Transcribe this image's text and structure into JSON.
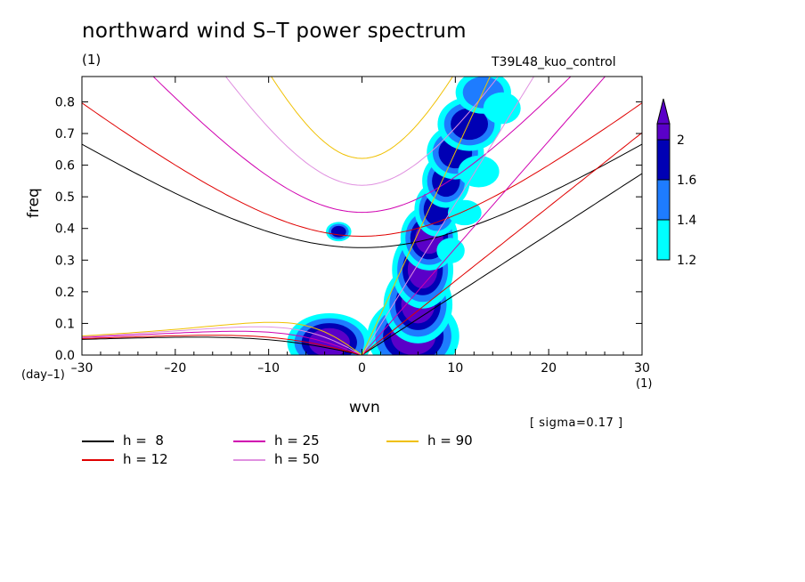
{
  "chart_data": {
    "type": "heatmap",
    "title": "northward wind S–T power spectrum",
    "subtitle_left": "(1)",
    "subtitle_right": "T39L48_kuo_control",
    "xlabel": "wvn",
    "xlabel_unit": "(1)",
    "ylabel": "freq",
    "ylabel_unit": "(day–1)",
    "xlim": [
      -30,
      30
    ],
    "ylim": [
      0,
      0.88
    ],
    "xticks": [
      -30,
      -20,
      -10,
      0,
      10,
      20,
      30
    ],
    "xtick_labels": [
      "–30",
      "–20",
      "–10",
      "0",
      "10",
      "20",
      "30"
    ],
    "yticks": [
      0,
      0.1,
      0.2,
      0.3,
      0.4,
      0.5,
      0.6,
      0.7,
      0.8
    ],
    "ytick_labels": [
      "0.0",
      "0.1",
      "0.2",
      "0.3",
      "0.4",
      "0.5",
      "0.6",
      "0.7",
      "0.8"
    ],
    "colorbar": {
      "levels": [
        1.2,
        1.4,
        1.6,
        2
      ],
      "labels": [
        "1.2",
        "1.4",
        "1.6",
        "2"
      ],
      "colors": [
        "#00ffff",
        "#1e7cff",
        "#0000b4",
        "#5a00c8"
      ]
    },
    "sigma_note": "[ sigma=0.17 ]",
    "dispersion_curves": [
      {
        "h": 8,
        "label": "h =  8",
        "color": "#000000"
      },
      {
        "h": 12,
        "label": "h = 12",
        "color": "#e00000"
      },
      {
        "h": 25,
        "label": "h = 25",
        "color": "#d000b0"
      },
      {
        "h": 50,
        "label": "h = 50",
        "color": "#e090e0"
      },
      {
        "h": 90,
        "label": "h = 90",
        "color": "#f0c000"
      }
    ],
    "spectral_blobs": [
      {
        "x": 5.5,
        "y": 0.06,
        "rx": 2.4,
        "ry": 0.06,
        "level": 3
      },
      {
        "x": 6.0,
        "y": 0.16,
        "rx": 1.8,
        "ry": 0.06,
        "level": 3
      },
      {
        "x": 6.5,
        "y": 0.27,
        "rx": 1.6,
        "ry": 0.06,
        "level": 3
      },
      {
        "x": 7.2,
        "y": 0.37,
        "rx": 1.5,
        "ry": 0.05,
        "level": 3
      },
      {
        "x": 8.0,
        "y": 0.46,
        "rx": 1.4,
        "ry": 0.05,
        "level": 2
      },
      {
        "x": 9.0,
        "y": 0.55,
        "rx": 1.5,
        "ry": 0.05,
        "level": 2
      },
      {
        "x": 10.0,
        "y": 0.64,
        "rx": 1.8,
        "ry": 0.05,
        "level": 2
      },
      {
        "x": 11.5,
        "y": 0.73,
        "rx": 2.0,
        "ry": 0.05,
        "level": 2
      },
      {
        "x": 13.0,
        "y": 0.83,
        "rx": 2.2,
        "ry": 0.05,
        "level": 1
      },
      {
        "x": -3.5,
        "y": 0.04,
        "rx": 2.2,
        "ry": 0.045,
        "level": 3
      },
      {
        "x": -2.5,
        "y": 0.39,
        "rx": 0.8,
        "ry": 0.018,
        "level": 2
      },
      {
        "x": 15.0,
        "y": 0.78,
        "rx": 2.0,
        "ry": 0.05,
        "level": 0
      },
      {
        "x": 12.5,
        "y": 0.58,
        "rx": 2.2,
        "ry": 0.05,
        "level": 0
      },
      {
        "x": 11.0,
        "y": 0.45,
        "rx": 1.8,
        "ry": 0.04,
        "level": 0
      },
      {
        "x": 9.5,
        "y": 0.33,
        "rx": 1.5,
        "ry": 0.04,
        "level": 0
      }
    ],
    "grid": false,
    "legend_position": "bottom-left"
  }
}
